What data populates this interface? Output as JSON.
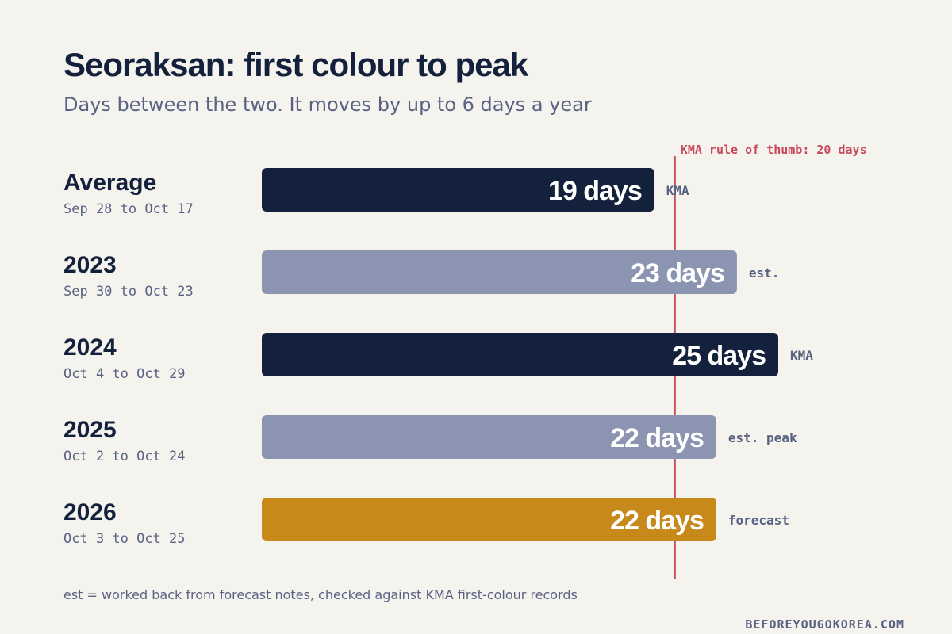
{
  "chart_data": {
    "type": "bar",
    "orientation": "horizontal",
    "title": "Seoraksan: first colour to peak",
    "subtitle": "Days between the two. It moves by up to 6 days a year",
    "unit": "days",
    "categories": [
      "Average",
      "2023",
      "2024",
      "2025",
      "2026"
    ],
    "date_ranges": [
      "Sep 28 to Oct 17",
      "Sep 30 to Oct 23",
      "Oct 4 to Oct 29",
      "Oct 2 to Oct 24",
      "Oct 3 to Oct 25"
    ],
    "values": [
      19,
      23,
      25,
      22,
      22
    ],
    "value_labels": [
      "19 days",
      "23 days",
      "25 days",
      "22 days",
      "22 days"
    ],
    "sources": [
      "KMA",
      "est.",
      "KMA",
      "est. peak",
      "forecast"
    ],
    "bar_colors": [
      "#14213d",
      "#8b94b0",
      "#14213d",
      "#8b94b0",
      "#c8891b"
    ],
    "reference_line": {
      "value": 20,
      "label": "KMA rule of thumb: 20 days",
      "color": "#c8495a"
    },
    "xlim": [
      0,
      25
    ]
  },
  "footnote": "est = worked back from forecast notes, checked against KMA first-colour records",
  "brand": "BEFOREYOUGOKOREA.COM",
  "colors": {
    "background": "#f5f3ee",
    "text_dark": "#14213d",
    "text_muted": "#5a6283"
  }
}
